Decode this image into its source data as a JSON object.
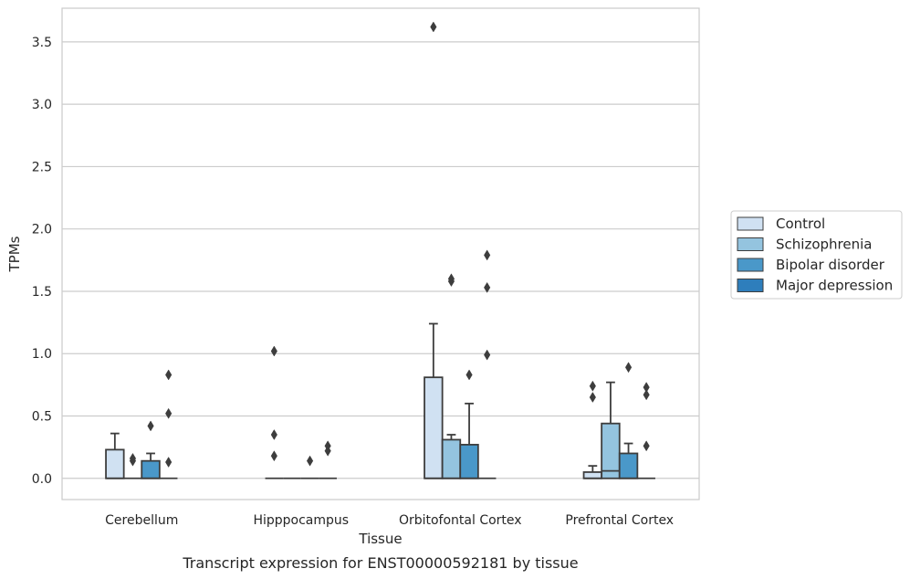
{
  "caption": "Transcript expression for ENST00000592181 by tissue",
  "chart_data": {
    "type": "box",
    "xlabel": "Tissue",
    "ylabel": "TPMs",
    "ylim": [
      -0.17,
      3.77
    ],
    "yticks": [
      "0.0",
      "0.5",
      "1.0",
      "1.5",
      "2.0",
      "2.5",
      "3.0",
      "3.5"
    ],
    "categories": [
      "Cerebellum",
      "Hipppocampus",
      "Orbitofontal Cortex",
      "Prefrontal Cortex"
    ],
    "grid": "horizontal",
    "legend_position": "right",
    "series": [
      {
        "name": "Control",
        "color": "#d0e1f2",
        "boxes": [
          {
            "q1": 0,
            "median": 0,
            "q3": 0.23,
            "whisker_low": 0,
            "whisker_high": 0.36,
            "outliers": []
          },
          {
            "q1": 0,
            "median": 0,
            "q3": 0,
            "whisker_low": 0,
            "whisker_high": 0,
            "outliers": [
              1.02,
              0.35,
              0.18
            ]
          },
          {
            "q1": 0,
            "median": 0,
            "q3": 0.81,
            "whisker_low": 0,
            "whisker_high": 1.24,
            "outliers": [
              3.62
            ]
          },
          {
            "q1": 0,
            "median": 0,
            "q3": 0.05,
            "whisker_low": 0,
            "whisker_high": 0.1,
            "outliers": [
              0.74,
              0.65
            ]
          }
        ]
      },
      {
        "name": "Schizophrenia",
        "color": "#94c4df",
        "boxes": [
          {
            "q1": 0,
            "median": 0,
            "q3": 0,
            "whisker_low": 0,
            "whisker_high": 0,
            "outliers": [
              0.16,
              0.14
            ]
          },
          {
            "q1": 0,
            "median": 0,
            "q3": 0,
            "whisker_low": 0,
            "whisker_high": 0,
            "outliers": []
          },
          {
            "q1": 0,
            "median": 0,
            "q3": 0.31,
            "whisker_low": 0,
            "whisker_high": 0.35,
            "outliers": [
              1.6,
              1.58
            ]
          },
          {
            "q1": 0,
            "median": 0.06,
            "q3": 0.44,
            "whisker_low": 0,
            "whisker_high": 0.77,
            "outliers": []
          }
        ]
      },
      {
        "name": "Bipolar disorder",
        "color": "#4a98c9",
        "boxes": [
          {
            "q1": 0,
            "median": 0,
            "q3": 0.14,
            "whisker_low": 0,
            "whisker_high": 0.2,
            "outliers": [
              0.42
            ]
          },
          {
            "q1": 0,
            "median": 0,
            "q3": 0,
            "whisker_low": 0,
            "whisker_high": 0,
            "outliers": [
              0.14
            ]
          },
          {
            "q1": 0,
            "median": 0,
            "q3": 0.27,
            "whisker_low": 0,
            "whisker_high": 0.6,
            "outliers": [
              0.83
            ]
          },
          {
            "q1": 0,
            "median": 0,
            "q3": 0.2,
            "whisker_low": 0,
            "whisker_high": 0.28,
            "outliers": [
              0.89
            ]
          }
        ]
      },
      {
        "name": "Major depression",
        "color": "#2e7ebc",
        "boxes": [
          {
            "q1": 0,
            "median": 0,
            "q3": 0,
            "whisker_low": 0,
            "whisker_high": 0,
            "outliers": [
              0.83,
              0.52,
              0.13
            ]
          },
          {
            "q1": 0,
            "median": 0,
            "q3": 0,
            "whisker_low": 0,
            "whisker_high": 0,
            "outliers": [
              0.26,
              0.22
            ]
          },
          {
            "q1": 0,
            "median": 0,
            "q3": 0,
            "whisker_low": 0,
            "whisker_high": 0,
            "outliers": [
              1.79,
              1.53,
              0.99
            ]
          },
          {
            "q1": 0,
            "median": 0,
            "q3": 0,
            "whisker_low": 0,
            "whisker_high": 0,
            "outliers": [
              0.73,
              0.67,
              0.26
            ]
          }
        ]
      }
    ]
  }
}
